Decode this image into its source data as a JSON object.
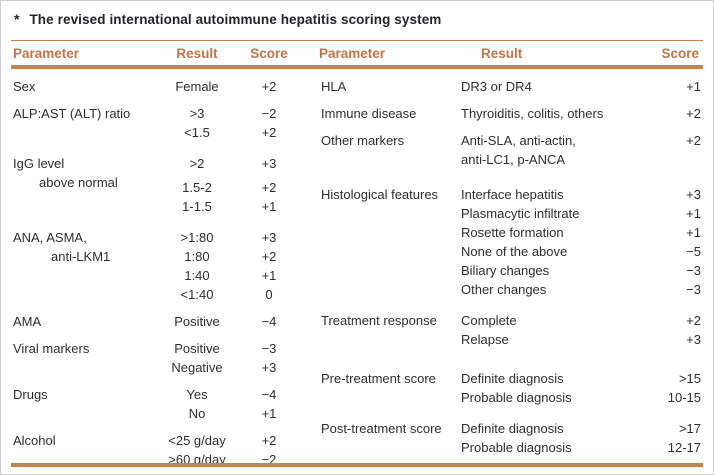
{
  "colors": {
    "accent_rule": "#c8824c",
    "header_text": "#c0744a",
    "title_text": "#23242a",
    "body_text": "#2e2e2e",
    "page_border": "#cfcfcf"
  },
  "title": {
    "marker": "*",
    "text": "The revised international autoimmune hepatitis scoring system"
  },
  "left_table": {
    "headers": {
      "parameter": "Parameter",
      "result": "Result",
      "score": "Score"
    },
    "groups": [
      {
        "param": [
          "Sex"
        ],
        "rows": [
          {
            "result": "Female",
            "score": "+2"
          }
        ]
      },
      {
        "param": [
          "ALP:AST (ALT) ratio"
        ],
        "rows": [
          {
            "result": ">3",
            "score": "−2"
          },
          {
            "result": "<1.5",
            "score": "+2"
          }
        ]
      },
      {
        "param": [
          "IgG level",
          "above normal"
        ],
        "rows": [
          {
            "result": ">2",
            "score": "+3"
          },
          {
            "result": "1.5-2",
            "score": "+2"
          },
          {
            "result": "1-1.5",
            "score": "+1"
          }
        ]
      },
      {
        "param": [
          "ANA, ASMA,",
          "anti-LKM1"
        ],
        "rows": [
          {
            "result": ">1:80",
            "score": "+3"
          },
          {
            "result": "1:80",
            "score": "+2"
          },
          {
            "result": "1:40",
            "score": "+1"
          },
          {
            "result": "<1:40",
            "score": "0"
          }
        ]
      },
      {
        "param": [
          "AMA"
        ],
        "rows": [
          {
            "result": "Positive",
            "score": "−4"
          }
        ]
      },
      {
        "param": [
          "Viral markers"
        ],
        "rows": [
          {
            "result": "Positive",
            "score": "−3"
          },
          {
            "result": "Negative",
            "score": "+3"
          }
        ]
      },
      {
        "param": [
          "Drugs"
        ],
        "rows": [
          {
            "result": "Yes",
            "score": "−4"
          },
          {
            "result": "No",
            "score": "+1"
          }
        ]
      },
      {
        "param": [
          "Alcohol"
        ],
        "rows": [
          {
            "result": "<25 g/day",
            "score": "+2"
          },
          {
            "result": ">60 g/day",
            "score": "−2"
          }
        ]
      }
    ]
  },
  "right_table": {
    "headers": {
      "parameter": "Parameter",
      "result": "Result",
      "score": "Score"
    },
    "groups": [
      {
        "param": [
          "HLA"
        ],
        "rows": [
          {
            "result": "DR3 or DR4",
            "score": "+1"
          }
        ]
      },
      {
        "param": [
          "Immune disease"
        ],
        "rows": [
          {
            "result": "Thyroiditis, colitis, others",
            "score": "+2"
          }
        ]
      },
      {
        "param": [
          "Other markers"
        ],
        "rows": [
          {
            "result": "Anti-SLA, anti-actin,",
            "score": "+2"
          },
          {
            "result": "anti-LC1, p-ANCA",
            "score": ""
          }
        ]
      },
      {
        "param": [
          "Histological features"
        ],
        "rows": [
          {
            "result": "Interface hepatitis",
            "score": "+3"
          },
          {
            "result": "Plasmacytic infiltrate",
            "score": "+1"
          },
          {
            "result": "Rosette formation",
            "score": "+1"
          },
          {
            "result": "None of the above",
            "score": "−5"
          },
          {
            "result": "Biliary changes",
            "score": "−3"
          },
          {
            "result": "Other changes",
            "score": "−3"
          }
        ]
      },
      {
        "param": [
          "Treatment response"
        ],
        "rows": [
          {
            "result": "Complete",
            "score": "+2"
          },
          {
            "result": "Relapse",
            "score": "+3"
          }
        ]
      },
      {
        "param": [
          "Pre-treatment score"
        ],
        "rows": [
          {
            "result": "Definite diagnosis",
            "score": ">15"
          },
          {
            "result": "Probable diagnosis",
            "score": "10-15"
          }
        ]
      },
      {
        "param": [
          "Post-treatment score"
        ],
        "rows": [
          {
            "result": "Definite diagnosis",
            "score": ">17"
          },
          {
            "result": "Probable diagnosis",
            "score": "12-17"
          }
        ]
      }
    ]
  }
}
